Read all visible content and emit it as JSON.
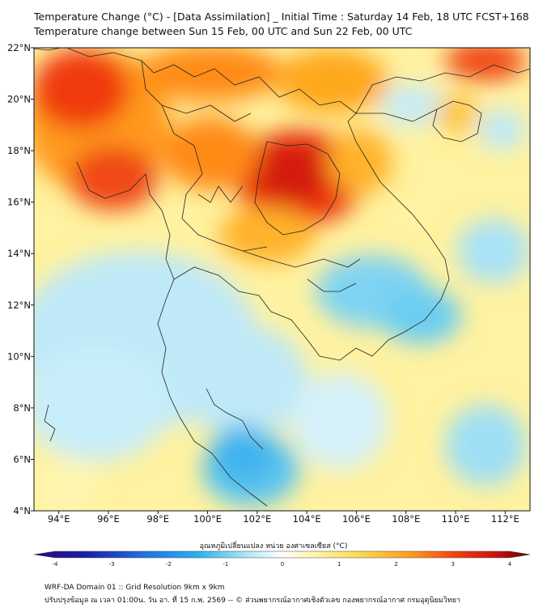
{
  "title": {
    "line1": "Temperature Change (°C) - [Data Assimilation] _ Initial Time : Saturday 14 Feb, 18 UTC FCST+168",
    "line2": "Temperature change between Sun 15 Feb, 00 UTC and Sun 22 Feb, 00 UTC"
  },
  "map": {
    "lat_range": [
      4,
      22
    ],
    "lon_range": [
      93,
      113
    ],
    "lat_ticks": [
      "22°N",
      "20°N",
      "18°N",
      "16°N",
      "14°N",
      "12°N",
      "10°N",
      "8°N",
      "6°N",
      "4°N"
    ],
    "lon_ticks": [
      "94°E",
      "96°E",
      "98°E",
      "100°E",
      "102°E",
      "104°E",
      "106°E",
      "108°E",
      "110°E",
      "112°E"
    ]
  },
  "colorbar": {
    "title": "อุณหภูมิเปลี่ยนแปลง หน่วย องศาเซลเซียส (°C)",
    "min": -4,
    "max": 4,
    "tick_labels": [
      "-4",
      "-3",
      "-2",
      "-1",
      "0",
      "1",
      "2",
      "3",
      "4"
    ],
    "colors": [
      "#3b0a6e",
      "#1a1aa8",
      "#1f5fe0",
      "#2ab0f0",
      "#bfeaf8",
      "#ffffff",
      "#fff6a8",
      "#ffd84a",
      "#ff9a1a",
      "#f03a10",
      "#c40d0d",
      "#5c0000"
    ]
  },
  "footer": {
    "line1": "WRF-DA Domain 01 :: Grid Resolution 9km x 9km",
    "line2": "ปรับปรุงข้อมูล ณ เวลา 01:00น. วัน อา. ที่ 15 ก.พ. 2569 -- © ส่วนพยากรณ์อากาศเชิงตัวเลข กองพยากรณ์อากาศ กรมอุตุนิยมวิทยา"
  }
}
